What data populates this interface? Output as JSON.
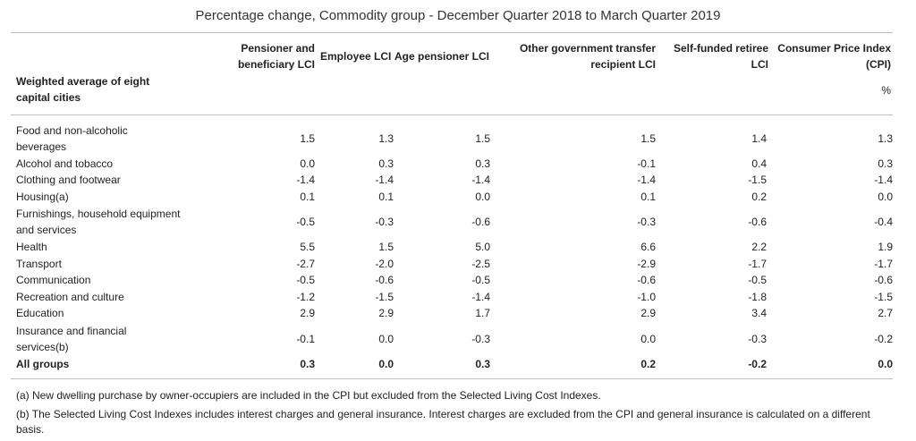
{
  "title": "Percentage change, Commodity group - December Quarter 2018 to March Quarter 2019",
  "columns": [
    {
      "line1": "Pensioner and",
      "line2": "beneficiary LCI"
    },
    {
      "line1": "Employee LCI",
      "line2": ""
    },
    {
      "line1": "Age pensioner LCI",
      "line2": ""
    },
    {
      "line1": "Other government transfer",
      "line2": "recipient LCI"
    },
    {
      "line1": "Self-funded retiree",
      "line2": "LCI"
    },
    {
      "line1": "Consumer Price Index",
      "line2": "(CPI)"
    }
  ],
  "row_header": {
    "line1": "Weighted average of eight",
    "line2": "capital cities"
  },
  "unit": "%",
  "rows": [
    {
      "label1": "Food and non-alcoholic",
      "label2": "beverages",
      "values": [
        "1.5",
        "1.3",
        "1.5",
        "1.5",
        "1.4",
        "1.3"
      ]
    },
    {
      "label1": "Alcohol and tobacco",
      "label2": "",
      "values": [
        "0.0",
        "0.3",
        "0.3",
        "-0.1",
        "0.4",
        "0.3"
      ]
    },
    {
      "label1": "Clothing and footwear",
      "label2": "",
      "values": [
        "-1.4",
        "-1.4",
        "-1.4",
        "-1.4",
        "-1.5",
        "-1.4"
      ]
    },
    {
      "label1": "Housing(a)",
      "label2": "",
      "values": [
        "0.1",
        "0.1",
        "0.0",
        "0.1",
        "0.2",
        "0.0"
      ]
    },
    {
      "label1": "Furnishings, household equipment",
      "label2": "and services",
      "values": [
        "-0.5",
        "-0.3",
        "-0.6",
        "-0.3",
        "-0.6",
        "-0.4"
      ]
    },
    {
      "label1": "Health",
      "label2": "",
      "values": [
        "5.5",
        "1.5",
        "5.0",
        "6.6",
        "2.2",
        "1.9"
      ]
    },
    {
      "label1": "Transport",
      "label2": "",
      "values": [
        "-2.7",
        "-2.0",
        "-2.5",
        "-2.9",
        "-1.7",
        "-1.7"
      ]
    },
    {
      "label1": "Communication",
      "label2": "",
      "values": [
        "-0.5",
        "-0.6",
        "-0.5",
        "-0.6",
        "-0.5",
        "-0.6"
      ]
    },
    {
      "label1": "Recreation and culture",
      "label2": "",
      "values": [
        "-1.2",
        "-1.5",
        "-1.4",
        "-1.0",
        "-1.8",
        "-1.5"
      ]
    },
    {
      "label1": "Education",
      "label2": "",
      "values": [
        "2.9",
        "2.9",
        "1.7",
        "2.9",
        "3.4",
        "2.7"
      ]
    },
    {
      "label1": "Insurance and financial",
      "label2": "services(b)",
      "values": [
        "-0.1",
        "0.0",
        "-0.3",
        "0.0",
        "-0.3",
        "-0.2"
      ]
    },
    {
      "label1": "All groups",
      "label2": "",
      "values": [
        "0.3",
        "0.0",
        "0.3",
        "0.2",
        "-0.2",
        "0.0"
      ],
      "total": true
    }
  ],
  "notes": [
    "(a) New dwelling purchase by owner-occupiers are included in the CPI but excluded from the Selected Living Cost Indexes.",
    "(b) The Selected Living Cost Indexes includes interest charges and general insurance. Interest charges are excluded from the CPI and general insurance is calculated on a different",
    "basis."
  ]
}
